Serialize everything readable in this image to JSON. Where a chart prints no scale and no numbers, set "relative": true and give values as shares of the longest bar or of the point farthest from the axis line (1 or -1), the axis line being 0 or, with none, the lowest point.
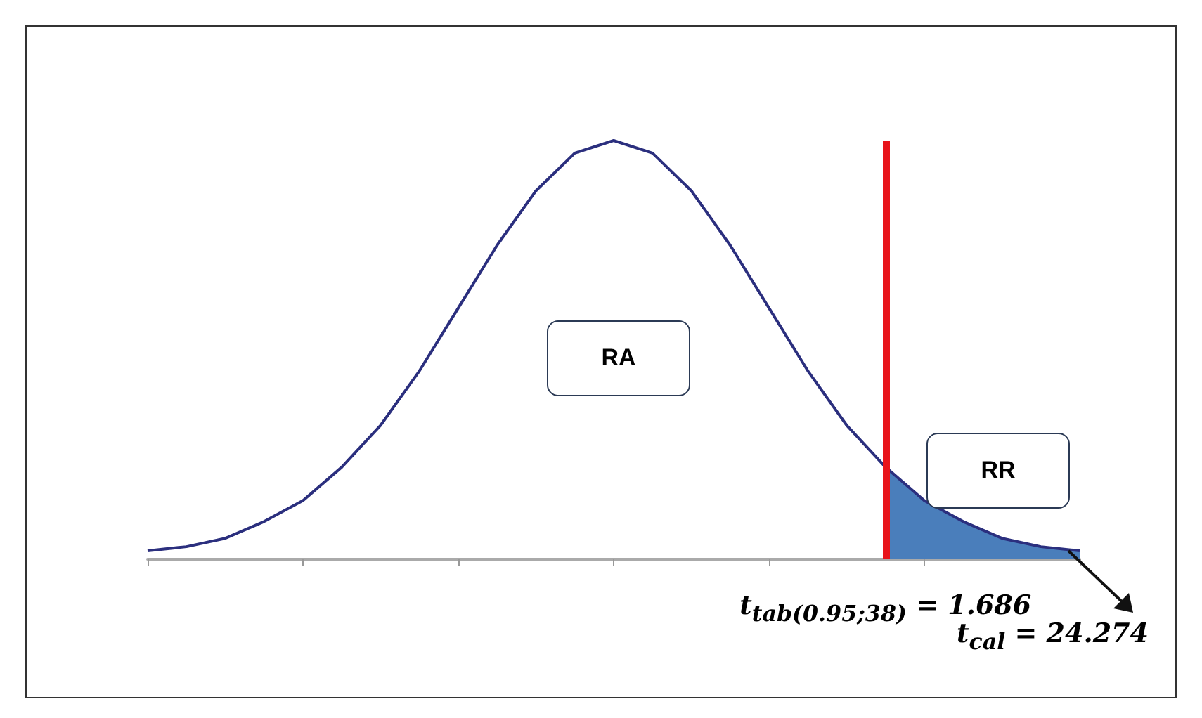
{
  "chart_data": {
    "type": "line",
    "relative": true,
    "marker": "none",
    "line_style": "solid",
    "categories": [
      null,
      null,
      null,
      null,
      null,
      null,
      null,
      null,
      null,
      null,
      null,
      null,
      null,
      null,
      null,
      null,
      null,
      null,
      null,
      null,
      null,
      null,
      null,
      null,
      null
    ],
    "series": [
      {
        "color": "#2b2f7e",
        "values": [
          0.02,
          0.03,
          0.05,
          0.09,
          0.14,
          0.22,
          0.32,
          0.45,
          0.6,
          0.75,
          0.88,
          0.97,
          1,
          0.97,
          0.88,
          0.75,
          0.6,
          0.45,
          0.32,
          0.22,
          0.14,
          0.09,
          0.05,
          0.03,
          0.02
        ]
      },
      {
        "type": "area",
        "color": "#4a7ebb",
        "values": [
          null,
          null,
          null,
          null,
          null,
          null,
          null,
          null,
          null,
          null,
          null,
          null,
          null,
          null,
          null,
          null,
          null,
          null,
          null,
          0.22,
          0.14,
          0.09,
          0.05,
          0.03,
          0.02
        ]
      }
    ],
    "annotations": [
      "RA",
      "RR",
      "t$_{tab(0.95;38)}$ = 1.686",
      "t$_{cal}$ = 24.274"
    ]
  }
}
